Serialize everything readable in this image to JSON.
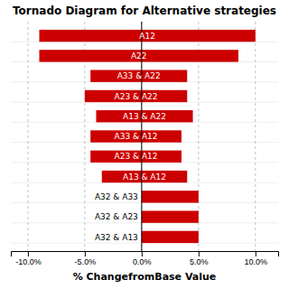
{
  "chart_data": {
    "type": "bar",
    "orientation": "horizontal",
    "title": "Tornado Diagram for Alternative strategies",
    "xlabel": "% ChangefromBase Value",
    "categories": [
      "A12",
      "A22",
      "A33 & A22",
      "A23 & A22",
      "A13 & A22",
      "A33 & A12",
      "A23 & A12",
      "A13 & A12",
      "A32 & A33",
      "A32 & A23",
      "A32 & A13"
    ],
    "low": [
      -9.0,
      -9.0,
      -4.5,
      -5.0,
      -4.0,
      -4.5,
      -4.5,
      -3.5,
      0.0,
      0.0,
      0.0
    ],
    "high": [
      10.0,
      8.5,
      4.0,
      4.0,
      4.5,
      3.5,
      3.5,
      4.0,
      5.0,
      5.0,
      5.0
    ],
    "color": "#cc0000",
    "xlim": [
      -11.5,
      12.0
    ],
    "xticks": [
      {
        "value": -10.0,
        "label": "-10.0%"
      },
      {
        "value": -5.0,
        "label": "-5.0%"
      },
      {
        "value": 0.0,
        "label": "0.0%"
      },
      {
        "value": 5.0,
        "label": "5.0%"
      },
      {
        "value": 10.0,
        "label": "10.0%"
      }
    ],
    "grid": true
  }
}
